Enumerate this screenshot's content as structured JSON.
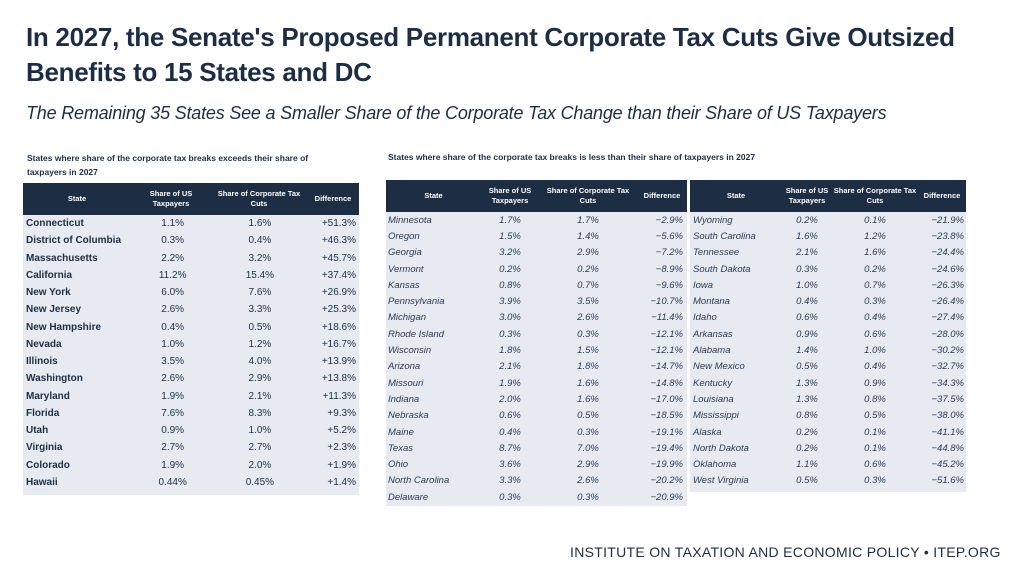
{
  "title": "In 2027, the Senate's Proposed Permanent Corporate Tax Cuts Give Outsized Benefits to 15 States and DC",
  "subtitle": "The Remaining 35 States See a Smaller Share of the Corporate Tax Change than their Share of US Taxpayers",
  "left_caption": "States where share of the corporate tax breaks exceeds their share of taxpayers in 2027",
  "right_caption": "States where share of the corporate tax breaks is less than their share of taxpayers in 2027",
  "headers": {
    "state": "State",
    "taxpayers": "Share of US Taxpayers",
    "cuts": "Share of Corporate Tax Cuts",
    "diff": "Difference"
  },
  "left_rows": [
    [
      "Connecticut",
      "1.1%",
      "1.6%",
      "+51.3%"
    ],
    [
      "District of Columbia",
      "0.3%",
      "0.4%",
      "+46.3%"
    ],
    [
      "Massachusetts",
      "2.2%",
      "3.2%",
      "+45.7%"
    ],
    [
      "California",
      "11.2%",
      "15.4%",
      "+37.4%"
    ],
    [
      "New York",
      "6.0%",
      "7.6%",
      "+26.9%"
    ],
    [
      "New Jersey",
      "2.6%",
      "3.3%",
      "+25.3%"
    ],
    [
      "New Hampshire",
      "0.4%",
      "0.5%",
      "+18.6%"
    ],
    [
      "Nevada",
      "1.0%",
      "1.2%",
      "+16.7%"
    ],
    [
      "Illinois",
      "3.5%",
      "4.0%",
      "+13.9%"
    ],
    [
      "Washington",
      "2.6%",
      "2.9%",
      "+13.8%"
    ],
    [
      "Maryland",
      "1.9%",
      "2.1%",
      "+11.3%"
    ],
    [
      "Florida",
      "7.6%",
      "8.3%",
      "+9.3%"
    ],
    [
      "Utah",
      "0.9%",
      "1.0%",
      "+5.2%"
    ],
    [
      "Virginia",
      "2.7%",
      "2.7%",
      "+2.3%"
    ],
    [
      "Colorado",
      "1.9%",
      "2.0%",
      "+1.9%"
    ],
    [
      "Hawaii",
      "0.44%",
      "0.45%",
      "+1.4%"
    ]
  ],
  "mid_rows": [
    [
      "Minnesota",
      "1.7%",
      "1.7%",
      "−2.9%"
    ],
    [
      "Oregon",
      "1.5%",
      "1.4%",
      "−5.6%"
    ],
    [
      "Georgia",
      "3.2%",
      "2.9%",
      "−7.2%"
    ],
    [
      "Vermont",
      "0.2%",
      "0.2%",
      "−8.9%"
    ],
    [
      "Kansas",
      "0.8%",
      "0.7%",
      "−9.6%"
    ],
    [
      "Pennsylvania",
      "3.9%",
      "3.5%",
      "−10.7%"
    ],
    [
      "Michigan",
      "3.0%",
      "2.6%",
      "−11.4%"
    ],
    [
      "Rhode Island",
      "0.3%",
      "0.3%",
      "−12.1%"
    ],
    [
      "Wisconsin",
      "1.8%",
      "1.5%",
      "−12.1%"
    ],
    [
      "Arizona",
      "2.1%",
      "1.8%",
      "−14.7%"
    ],
    [
      "Missouri",
      "1.9%",
      "1.6%",
      "−14.8%"
    ],
    [
      "Indiana",
      "2.0%",
      "1.6%",
      "−17.0%"
    ],
    [
      "Nebraska",
      "0.6%",
      "0.5%",
      "−18.5%"
    ],
    [
      "Maine",
      "0.4%",
      "0.3%",
      "−19.1%"
    ],
    [
      "Texas",
      "8.7%",
      "7.0%",
      "−19.4%"
    ],
    [
      "Ohio",
      "3.6%",
      "2.9%",
      "−19.9%"
    ],
    [
      "North Carolina",
      "3.3%",
      "2.6%",
      "−20.2%"
    ],
    [
      "Delaware",
      "0.3%",
      "0.3%",
      "−20.9%"
    ]
  ],
  "right_rows": [
    [
      "Wyoming",
      "0.2%",
      "0.1%",
      "−21.9%"
    ],
    [
      "South Carolina",
      "1.6%",
      "1.2%",
      "−23.8%"
    ],
    [
      "Tennessee",
      "2.1%",
      "1.6%",
      "−24.4%"
    ],
    [
      "South Dakota",
      "0.3%",
      "0.2%",
      "−24.6%"
    ],
    [
      "Iowa",
      "1.0%",
      "0.7%",
      "−26.3%"
    ],
    [
      "Montana",
      "0.4%",
      "0.3%",
      "−26.4%"
    ],
    [
      "Idaho",
      "0.6%",
      "0.4%",
      "−27.4%"
    ],
    [
      "Arkansas",
      "0.9%",
      "0.6%",
      "−28.0%"
    ],
    [
      "Alabama",
      "1.4%",
      "1.0%",
      "−30.2%"
    ],
    [
      "New Mexico",
      "0.5%",
      "0.4%",
      "−32.7%"
    ],
    [
      "Kentucky",
      "1.3%",
      "0.9%",
      "−34.3%"
    ],
    [
      "Louisiana",
      "1.3%",
      "0.8%",
      "−37.5%"
    ],
    [
      "Mississippi",
      "0.8%",
      "0.5%",
      "−38.0%"
    ],
    [
      "Alaska",
      "0.2%",
      "0.1%",
      "−41.1%"
    ],
    [
      "North Dakota",
      "0.2%",
      "0.1%",
      "−44.8%"
    ],
    [
      "Oklahoma",
      "1.1%",
      "0.6%",
      "−45.2%"
    ],
    [
      "West Virginia",
      "0.5%",
      "0.3%",
      "−51.6%"
    ]
  ],
  "footer": "INSTITUTE ON TAXATION AND ECONOMIC POLICY • ITEP.ORG"
}
